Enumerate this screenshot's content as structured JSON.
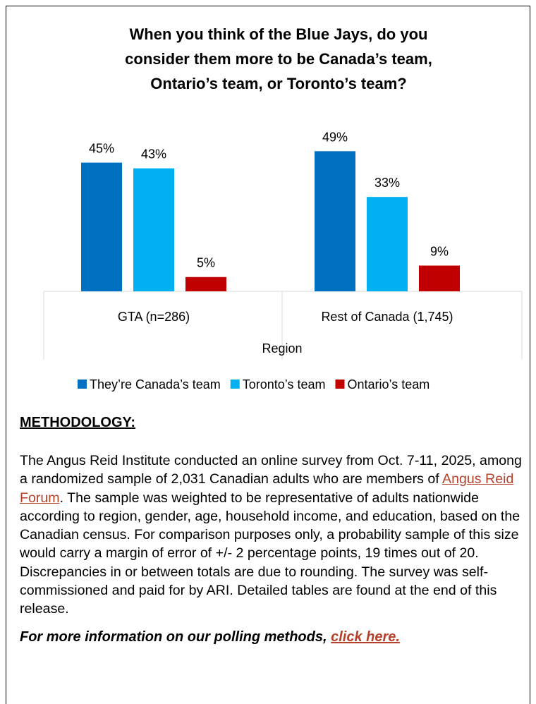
{
  "chart_data": {
    "type": "bar",
    "title": [
      "When you think of the Blue Jays, do you",
      "consider them more to be Canada’s team,",
      "Ontario’s team, or Toronto’s team?"
    ],
    "categories": [
      "GTA (n=286)",
      "Rest of Canada (1,745)"
    ],
    "x_label": "Region",
    "ylim": [
      0,
      55
    ],
    "series": [
      {
        "name": "They’re Canada’s team",
        "color": "#0070c0",
        "values": [
          45,
          49
        ],
        "value_labels": [
          "45%",
          "49%"
        ]
      },
      {
        "name": "Toronto’s team",
        "color": "#00b0f0",
        "values": [
          43,
          33
        ],
        "value_labels": [
          "43%",
          "33%"
        ]
      },
      {
        "name": "Ontario’s team",
        "color": "#c00000",
        "values": [
          5,
          9
        ],
        "value_labels": [
          "5%",
          "9%"
        ]
      }
    ]
  },
  "methodology": {
    "heading": "METHODOLOGY:",
    "text_before": "The Angus Reid Institute conducted an online survey from Oct. 7-11, 2025, among a randomized sample of 2,031 Canadian adults who are members of ",
    "link": "Angus Reid Forum",
    "text_after": ". The sample was weighted to be representative of adults nationwide according to region, gender, age, household income, and education, based on the Canadian census. For comparison purposes only, a probability sample of this size would carry a margin of error of +/- 2 percentage points, 19 times out of 20. Discrepancies in or between totals are due to rounding. The survey was self-commissioned and paid for by ARI. Detailed tables are found at the end of this release.",
    "footer": "For more information on our polling methods, ",
    "footer_link": "click here."
  }
}
